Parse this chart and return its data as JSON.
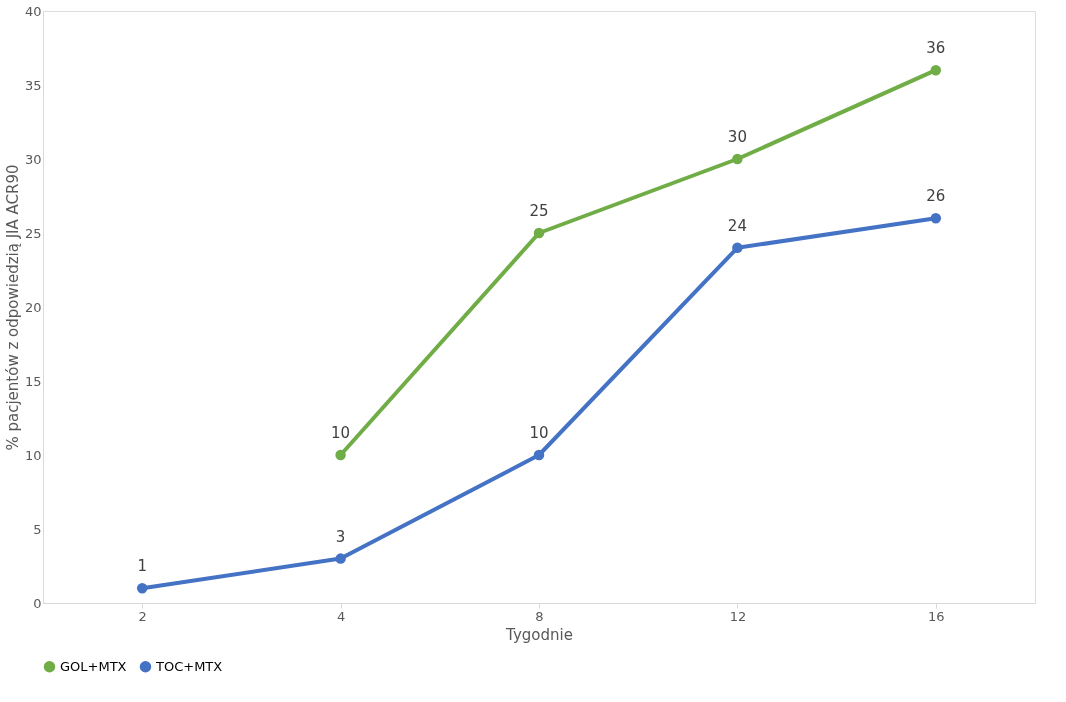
{
  "chart_data": {
    "type": "line",
    "xlabel": "Tygodnie",
    "ylabel": "% pacjentów z odpowiedzią JIA ACR90",
    "categories": [
      "2",
      "4",
      "8",
      "12",
      "16"
    ],
    "series": [
      {
        "name": "GOL+MTX",
        "color": "#70ad47",
        "values": [
          null,
          10,
          25,
          30,
          36
        ]
      },
      {
        "name": "TOC+MTX",
        "color": "#4472c4",
        "values": [
          1,
          3,
          10,
          24,
          26
        ]
      }
    ],
    "ylim": [
      0,
      40
    ],
    "yticks": [
      0,
      5,
      10,
      15,
      20,
      25,
      30,
      35,
      40
    ],
    "grid": false,
    "legend": "bottom",
    "marker": "circle",
    "line_style": "solid",
    "data_labels": true
  }
}
